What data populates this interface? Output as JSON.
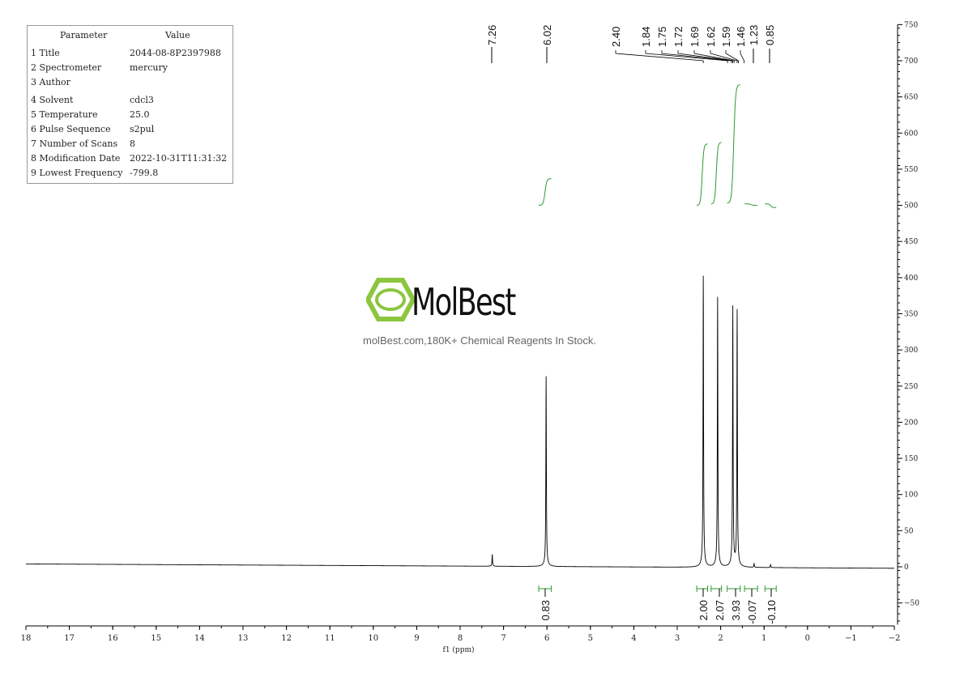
{
  "parameters": {
    "header": [
      "Parameter",
      "Value"
    ],
    "rows": [
      {
        "label": "1 Title",
        "value": "2044-08-8P2397988"
      },
      {
        "label": "2 Spectrometer",
        "value": "mercury"
      },
      {
        "label": "3 Author",
        "value": ""
      },
      {
        "label": "4 Solvent",
        "value": "cdcl3"
      },
      {
        "label": "5 Temperature",
        "value": "25.0"
      },
      {
        "label": "6 Pulse Sequence",
        "value": "s2pul"
      },
      {
        "label": "7 Number of Scans",
        "value": "8"
      },
      {
        "label": "8 Modification Date",
        "value": "2022-10-31T11:31:32"
      },
      {
        "label": "9 Lowest Frequency",
        "value": "-799.8"
      }
    ]
  },
  "watermark": {
    "name": "MolBest",
    "tagline": "molBest.com,180K+ Chemical Reagents In Stock."
  },
  "chart_data": {
    "type": "line",
    "xlabel": "f1 (ppm)",
    "xlim": [
      18,
      -2
    ],
    "ylim": [
      -50,
      750
    ],
    "x_ticks": [
      18,
      17,
      16,
      15,
      14,
      13,
      12,
      11,
      10,
      9,
      8,
      7,
      6,
      5,
      4,
      3,
      2,
      1,
      0,
      -1,
      -2
    ],
    "y_ticks": [
      750,
      700,
      650,
      600,
      550,
      500,
      450,
      400,
      350,
      300,
      250,
      200,
      150,
      100,
      50,
      0,
      -50
    ],
    "y_axis_side": "right",
    "grid": false,
    "line_color": "#000000",
    "integral_color": "#2e9a2e",
    "peaks": [
      {
        "ppm": 7.26,
        "height": 16
      },
      {
        "ppm": 6.02,
        "height": 258
      },
      {
        "ppm": 2.4,
        "height": 395
      },
      {
        "ppm": 2.07,
        "height": 366
      },
      {
        "ppm": 1.72,
        "height": 352
      },
      {
        "ppm": 1.62,
        "height": 347
      },
      {
        "ppm": 1.23,
        "height": 5
      },
      {
        "ppm": 0.85,
        "height": 4
      }
    ],
    "peak_labels": [
      "7.26",
      "6.02",
      "2.40",
      "1.84",
      "1.75",
      "1.72",
      "1.69",
      "1.62",
      "1.59",
      "1.46",
      "1.23",
      "0.85"
    ],
    "integrals": [
      {
        "from": 6.19,
        "to": 5.9,
        "value": "0.83",
        "start": 500,
        "end": 537
      },
      {
        "from": 2.55,
        "to": 2.3,
        "value": "2.00",
        "start": 500,
        "end": 585
      },
      {
        "from": 2.22,
        "to": 1.98,
        "value": "2.07",
        "start": 502,
        "end": 587
      },
      {
        "from": 1.85,
        "to": 1.55,
        "value": "3.93",
        "start": 503,
        "end": 667
      },
      {
        "from": 1.45,
        "to": 1.15,
        "value": "-0.07",
        "start": 502,
        "end": 500
      },
      {
        "from": 0.98,
        "to": 0.72,
        "value": "-0.10",
        "start": 502,
        "end": 497
      }
    ]
  }
}
